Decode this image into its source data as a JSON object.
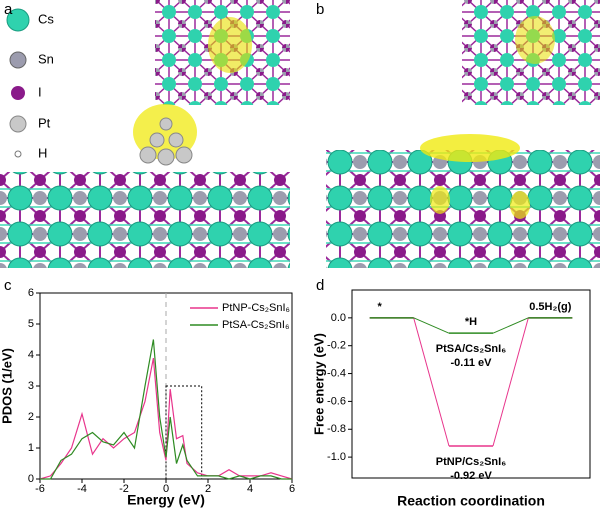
{
  "panels": {
    "a": {
      "label": "a",
      "legend": [
        "Cs",
        "Sn",
        "I",
        "Pt",
        "H"
      ]
    },
    "b": {
      "label": "b"
    }
  },
  "chart_data": [
    {
      "type": "line",
      "panel_label": "c",
      "xlabel": "Energy (eV)",
      "ylabel": "PDOS (1/eV)",
      "x": [
        -6,
        -5.5,
        -5,
        -4.5,
        -4,
        -3.5,
        -3,
        -2.5,
        -2,
        -1.5,
        -1,
        -0.6,
        -0.3,
        0,
        0.2,
        0.5,
        0.8,
        1,
        1.5,
        2,
        2.5,
        3,
        3.5,
        4,
        4.5,
        5,
        5.5,
        6
      ],
      "series": [
        {
          "name": "PtNP-Cs₂SnI₆",
          "color": "#e8358c",
          "values": [
            0,
            0.1,
            0.5,
            1.0,
            2.1,
            0.8,
            1.3,
            1.0,
            1.3,
            1.5,
            2.5,
            3.9,
            1.5,
            0.6,
            2.9,
            1.3,
            1.4,
            0.5,
            0.2,
            0.1,
            0.1,
            0.3,
            0.1,
            0.1,
            0.1,
            0.2,
            0.1,
            0
          ]
        },
        {
          "name": "PtSA-Cs₂SnI₆",
          "color": "#2e8b22",
          "values": [
            0,
            0,
            0.6,
            0.8,
            1.3,
            1.5,
            1.2,
            1.1,
            1.5,
            1.0,
            3.0,
            4.5,
            2.0,
            0.7,
            2.0,
            0.5,
            1.1,
            0.6,
            0.1,
            0.1,
            0.1,
            0,
            0.1,
            0,
            0.1,
            0.1,
            0,
            0
          ]
        }
      ],
      "xlim": [
        -6,
        6
      ],
      "xticks": [
        -6,
        -4,
        -2,
        0,
        2,
        4,
        6
      ],
      "ylim": [
        0,
        6
      ],
      "yticks": [
        0,
        1,
        2,
        3,
        4,
        5,
        6
      ],
      "vline": 0,
      "highlight_box": {
        "x": [
          0,
          1.7
        ],
        "y": [
          0,
          3
        ]
      }
    },
    {
      "type": "step",
      "panel_label": "d",
      "xlabel": "Reaction coordination",
      "ylabel": "Free energy (eV)",
      "categories": [
        "*",
        "*H",
        "0.5H₂(g)"
      ],
      "series": [
        {
          "name": "PtNP/Cs₂SnI₆",
          "color": "#e8358c",
          "values": [
            0,
            -0.92,
            0
          ],
          "value_labels": [
            null,
            "-0.92 eV",
            null
          ]
        },
        {
          "name": "PtSA/Cs₂SnI₆",
          "color": "#2e8b22",
          "values": [
            0,
            -0.11,
            0
          ],
          "value_labels": [
            null,
            "-0.11 eV",
            null
          ]
        }
      ],
      "ylim": [
        -1.15,
        0.2
      ],
      "yticks": [
        {
          "value": 0,
          "label": "0.0"
        },
        -0.2,
        -0.4,
        -0.6,
        -0.8,
        {
          "value": -1,
          "label": "-1.0"
        }
      ]
    }
  ]
}
